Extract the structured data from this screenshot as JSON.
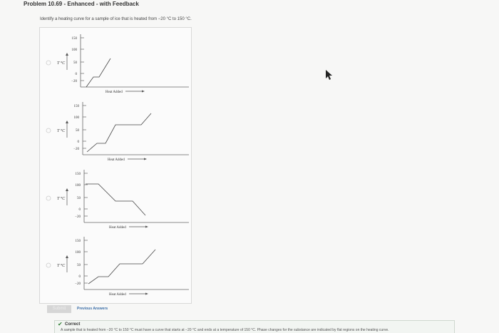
{
  "header": {
    "title": "Problem 10.69 - Enhanced - with Feedback"
  },
  "question": "Identify a heating curve for a sample of ice that is heated from −20 °C to 150 °C.",
  "options": [
    {
      "y_label": "T °C",
      "x_label": "Heat Added",
      "yticks": [
        "150",
        "100",
        "50",
        "0",
        "−20"
      ]
    },
    {
      "y_label": "T °C",
      "x_label": "Heat Added",
      "yticks": [
        "150",
        "100",
        "50",
        "0",
        "−20"
      ]
    },
    {
      "y_label": "T °C",
      "x_label": "Heat Added",
      "yticks": [
        "150",
        "100",
        "50",
        "0",
        "−20"
      ]
    },
    {
      "y_label": "T °C",
      "x_label": "Heat Added",
      "yticks": [
        "150",
        "100",
        "50",
        "0",
        "−20"
      ]
    }
  ],
  "buttons": {
    "submit": "Submit",
    "previous": "Previous Answers"
  },
  "feedback": {
    "status": "Correct",
    "text": "A sample that is heated from −20 °C to 150 °C must have a curve that starts at −20 °C and ends at a temperature of 150 °C. Phase changes for the substance are indicated by flat regions on the heating curve."
  }
}
